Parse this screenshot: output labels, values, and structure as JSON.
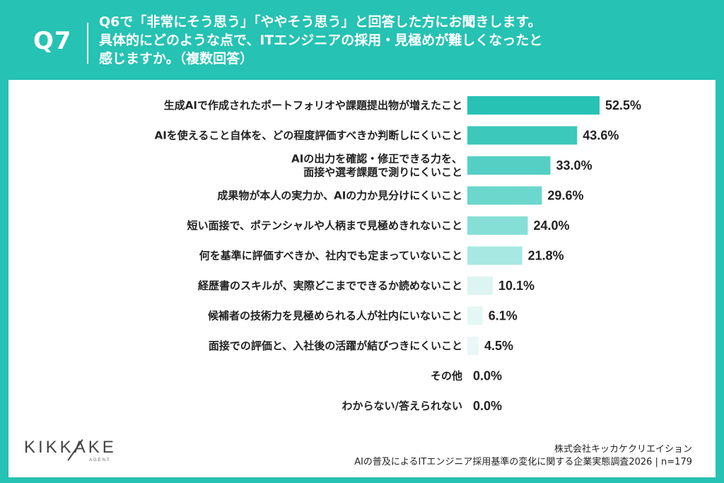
{
  "header": {
    "question_number": "Q7",
    "question_lines": [
      "Q6で「非常にそう思う」「ややそう思う」と回答した方にお聞きします。",
      "具体的にどのような点で、ITエンジニアの採用・見極めが難しくなったと",
      "感じますか。（複数回答）"
    ]
  },
  "chart_data": {
    "type": "bar",
    "orientation": "horizontal",
    "categories": [
      [
        "生成AIで作成されたポートフォリオや課題提出物が増えたこと"
      ],
      [
        "AIを使えること自体を、どの程度評価すべきか判断しにくいこと"
      ],
      [
        "AIの出力を確認・修正できる力を、",
        "面接や選考課題で測りにくいこと"
      ],
      [
        "成果物が本人の実力か、AIの力か見分けにくいこと"
      ],
      [
        "短い面接で、ポテンシャルや人柄まで見極めきれないこと"
      ],
      [
        "何を基準に評価すべきか、社内でも定まっていないこと"
      ],
      [
        "経歴書のスキルが、実際どこまでできるか読めないこと"
      ],
      [
        "候補者の技術力を見極められる人が社内にいないこと"
      ],
      [
        "面接での評価と、入社後の活躍が結びつきにくいこと"
      ],
      [
        "その他"
      ],
      [
        "わからない/答えられない"
      ]
    ],
    "values": [
      52.5,
      43.6,
      33.0,
      29.6,
      24.0,
      21.8,
      10.1,
      6.1,
      4.5,
      0.0,
      0.0
    ],
    "value_labels": [
      "52.5%",
      "43.6%",
      "33.0%",
      "29.6%",
      "24.0%",
      "21.8%",
      "10.1%",
      "6.1%",
      "4.5%",
      "0.0%",
      "0.0%"
    ],
    "unit": "%",
    "xlim": [
      0,
      100
    ],
    "grid": false,
    "legend": "none",
    "colors": [
      "#27c2b4",
      "#3cc8bb",
      "#55cfc4",
      "#6cd7cd",
      "#86dfd7",
      "#a7e8e2",
      "#ddf5f2",
      "#e4f7f5",
      "#e9f8f6",
      "#ffffff",
      "#ffffff"
    ]
  },
  "logo": {
    "text": "KIKKAKE",
    "subtext": "AGENT"
  },
  "footer": {
    "company": "株式会社キッカケクリエイション",
    "source": "AIの普及によるITエンジニア採用基準の変化に関する企業実態調査2026 | n=179"
  }
}
